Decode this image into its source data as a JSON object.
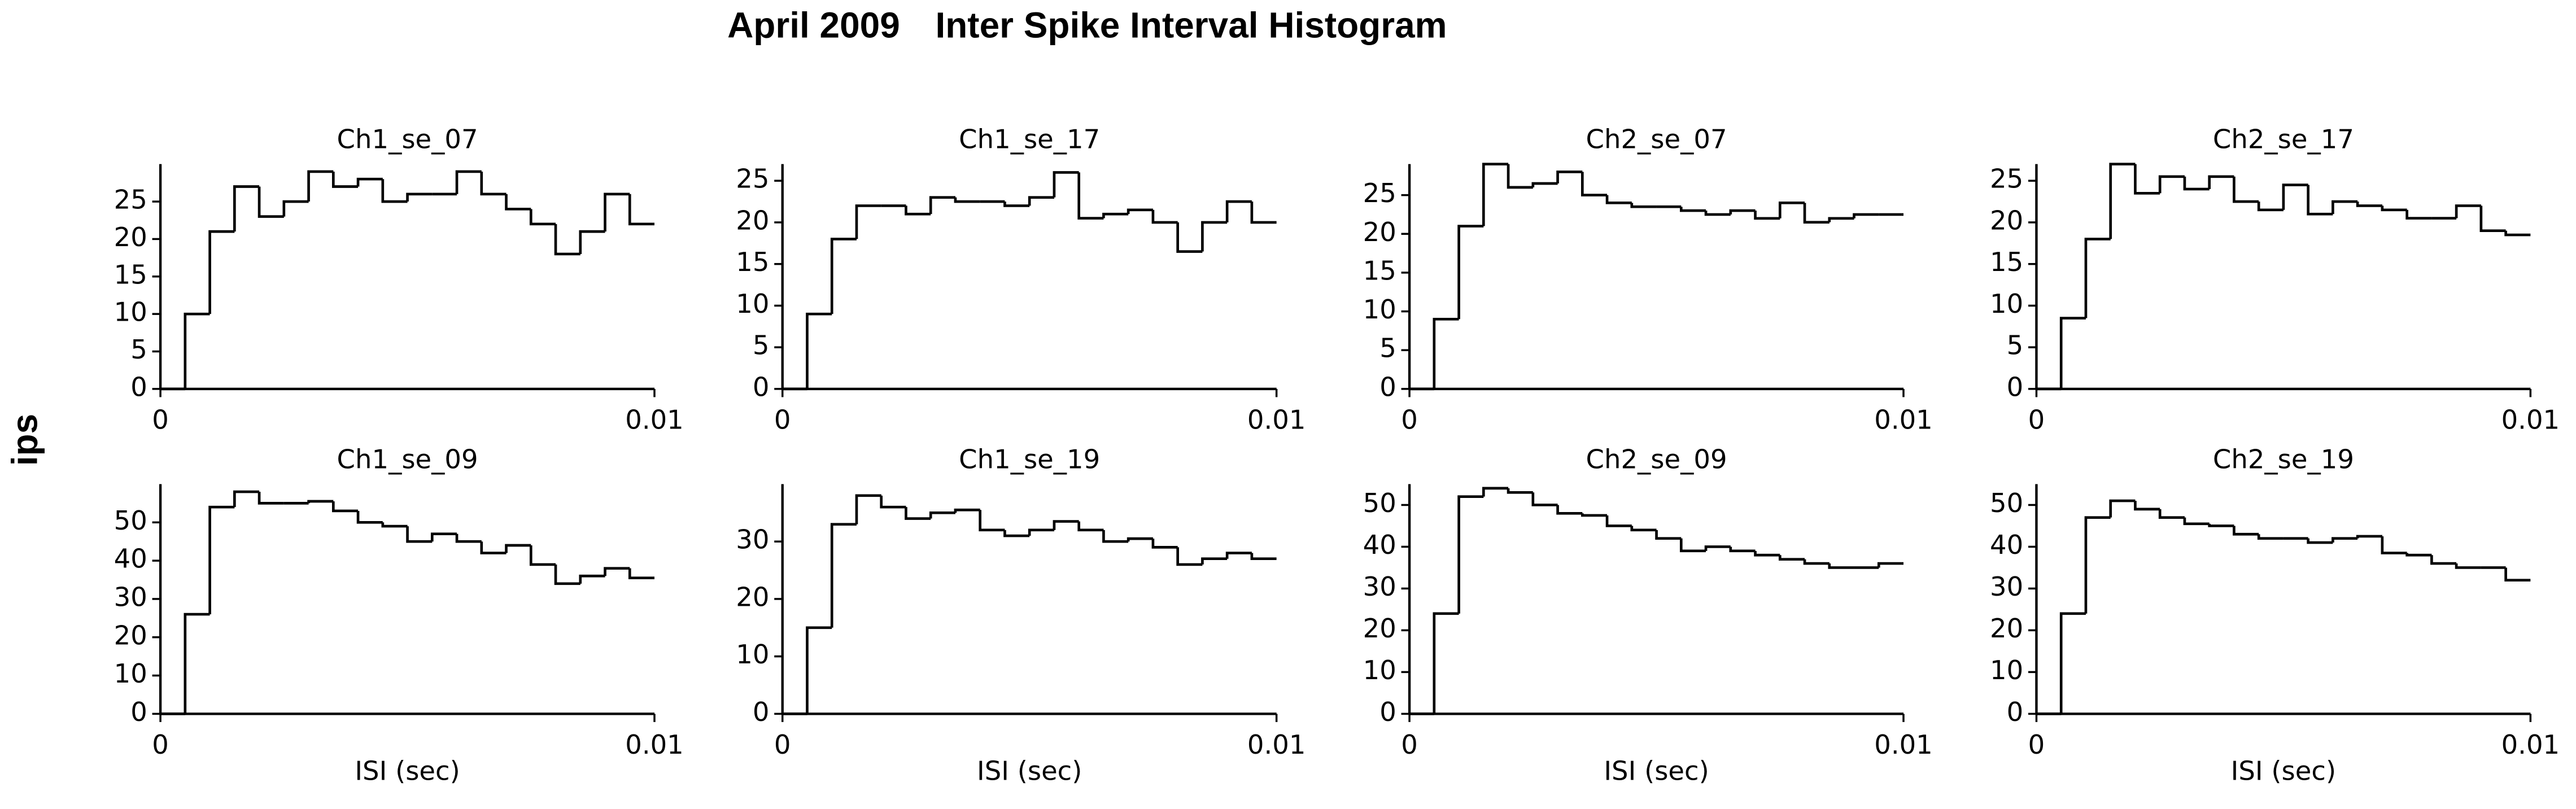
{
  "title": "April 2009",
  "heading": "Inter Spike Interval Histogram",
  "ylabel": "ips",
  "chart_data": [
    {
      "type": "histogram",
      "title": "Ch1_se_07",
      "color": "#000000",
      "bins": [
        0,
        0.0005,
        0.001,
        0.0015,
        0.002,
        0.0025,
        0.003,
        0.0035,
        0.004,
        0.0045,
        0.005,
        0.0055,
        0.006,
        0.0065,
        0.007,
        0.0075,
        0.008,
        0.0085,
        0.009,
        0.0095,
        0.01
      ],
      "values": [
        0,
        10,
        21,
        27,
        23,
        25,
        29,
        27,
        28,
        25,
        26,
        26,
        29,
        26,
        24,
        22,
        18,
        21,
        26,
        22
      ],
      "xlim": [
        0,
        0.01
      ],
      "xticks": [
        0,
        0.01
      ],
      "ylim": [
        0,
        30
      ],
      "yticks": [
        0,
        5,
        10,
        15,
        20,
        25
      ]
    },
    {
      "type": "histogram",
      "title": "Ch1_se_17",
      "color": "#000000",
      "bins": [
        0,
        0.0005,
        0.001,
        0.0015,
        0.002,
        0.0025,
        0.003,
        0.0035,
        0.004,
        0.0045,
        0.005,
        0.0055,
        0.006,
        0.0065,
        0.007,
        0.0075,
        0.008,
        0.0085,
        0.009,
        0.0095,
        0.01
      ],
      "values": [
        0,
        9,
        18,
        22,
        22,
        21,
        23,
        22.5,
        22.5,
        22,
        23,
        26,
        20.5,
        21,
        21.5,
        20,
        16.5,
        20,
        22.5,
        20
      ],
      "xlim": [
        0,
        0.01
      ],
      "xticks": [
        0,
        0.01
      ],
      "ylim": [
        0,
        27
      ],
      "yticks": [
        0,
        5,
        10,
        15,
        20,
        25
      ]
    },
    {
      "type": "histogram",
      "title": "Ch2_se_07",
      "color": "#000000",
      "bins": [
        0,
        0.0005,
        0.001,
        0.0015,
        0.002,
        0.0025,
        0.003,
        0.0035,
        0.004,
        0.0045,
        0.005,
        0.0055,
        0.006,
        0.0065,
        0.007,
        0.0075,
        0.008,
        0.0085,
        0.009,
        0.0095,
        0.01
      ],
      "values": [
        0,
        9,
        21,
        29,
        26,
        26.5,
        28,
        25,
        24,
        23.5,
        23.5,
        23,
        22.5,
        23,
        22,
        24,
        21.5,
        22,
        22.5,
        22.5
      ],
      "xlim": [
        0,
        0.01
      ],
      "xticks": [
        0,
        0.01
      ],
      "ylim": [
        0,
        29
      ],
      "yticks": [
        0,
        5,
        10,
        15,
        20,
        25
      ]
    },
    {
      "type": "histogram",
      "title": "Ch2_se_17",
      "color": "#000000",
      "bins": [
        0,
        0.0005,
        0.001,
        0.0015,
        0.002,
        0.0025,
        0.003,
        0.0035,
        0.004,
        0.0045,
        0.005,
        0.0055,
        0.006,
        0.0065,
        0.007,
        0.0075,
        0.008,
        0.0085,
        0.009,
        0.0095,
        0.01
      ],
      "values": [
        0,
        8.5,
        18,
        27,
        23.5,
        25.5,
        24,
        25.5,
        22.5,
        21.5,
        24.5,
        21,
        22.5,
        22,
        21.5,
        20.5,
        20.5,
        22,
        19,
        18.5
      ],
      "xlim": [
        0,
        0.01
      ],
      "xticks": [
        0,
        0.01
      ],
      "ylim": [
        0,
        27
      ],
      "yticks": [
        0,
        5,
        10,
        15,
        20,
        25
      ]
    },
    {
      "type": "histogram",
      "title": "Ch1_se_09",
      "xlabel": "ISI (sec)",
      "color": "#000000",
      "bins": [
        0,
        0.0005,
        0.001,
        0.0015,
        0.002,
        0.0025,
        0.003,
        0.0035,
        0.004,
        0.0045,
        0.005,
        0.0055,
        0.006,
        0.0065,
        0.007,
        0.0075,
        0.008,
        0.0085,
        0.009,
        0.0095,
        0.01
      ],
      "values": [
        0,
        26,
        54,
        58,
        55,
        55,
        55.5,
        53,
        50,
        49,
        45,
        47,
        45,
        42,
        44,
        39,
        34,
        36,
        38,
        35.5
      ],
      "xlim": [
        0,
        0.01
      ],
      "xticks": [
        0,
        0.01
      ],
      "ylim": [
        0,
        60
      ],
      "yticks": [
        0,
        10,
        20,
        30,
        40,
        50
      ]
    },
    {
      "type": "histogram",
      "title": "Ch1_se_19",
      "xlabel": "ISI (sec)",
      "color": "#000000",
      "bins": [
        0,
        0.0005,
        0.001,
        0.0015,
        0.002,
        0.0025,
        0.003,
        0.0035,
        0.004,
        0.0045,
        0.005,
        0.0055,
        0.006,
        0.0065,
        0.007,
        0.0075,
        0.008,
        0.0085,
        0.009,
        0.0095,
        0.01
      ],
      "values": [
        0,
        15,
        33,
        38,
        36,
        34,
        35,
        35.5,
        32,
        31,
        32,
        33.5,
        32,
        30,
        30.5,
        29,
        26,
        27,
        28,
        27
      ],
      "xlim": [
        0,
        0.01
      ],
      "xticks": [
        0,
        0.01
      ],
      "ylim": [
        0,
        40
      ],
      "yticks": [
        0,
        10,
        20,
        30
      ]
    },
    {
      "type": "histogram",
      "title": "Ch2_se_09",
      "xlabel": "ISI (sec)",
      "color": "#000000",
      "bins": [
        0,
        0.0005,
        0.001,
        0.0015,
        0.002,
        0.0025,
        0.003,
        0.0035,
        0.004,
        0.0045,
        0.005,
        0.0055,
        0.006,
        0.0065,
        0.007,
        0.0075,
        0.008,
        0.0085,
        0.009,
        0.0095,
        0.01
      ],
      "values": [
        0,
        24,
        52,
        54,
        53,
        50,
        48,
        47.5,
        45,
        44,
        42,
        39,
        40,
        39,
        38,
        37,
        36,
        35,
        35,
        36
      ],
      "xlim": [
        0,
        0.01
      ],
      "xticks": [
        0,
        0.01
      ],
      "ylim": [
        0,
        55
      ],
      "yticks": [
        0,
        10,
        20,
        30,
        40,
        50
      ]
    },
    {
      "type": "histogram",
      "title": "Ch2_se_19",
      "xlabel": "ISI (sec)",
      "color": "#000000",
      "bins": [
        0,
        0.0005,
        0.001,
        0.0015,
        0.002,
        0.0025,
        0.003,
        0.0035,
        0.004,
        0.0045,
        0.005,
        0.0055,
        0.006,
        0.0065,
        0.007,
        0.0075,
        0.008,
        0.0085,
        0.009,
        0.0095,
        0.01
      ],
      "values": [
        0,
        24,
        47,
        51,
        49,
        47,
        45.5,
        45,
        43,
        42,
        42,
        41,
        42,
        42.5,
        38.5,
        38,
        36,
        35,
        35,
        32
      ],
      "xlim": [
        0,
        0.01
      ],
      "xticks": [
        0,
        0.01
      ],
      "ylim": [
        0,
        55
      ],
      "yticks": [
        0,
        10,
        20,
        30,
        40,
        50
      ]
    }
  ]
}
